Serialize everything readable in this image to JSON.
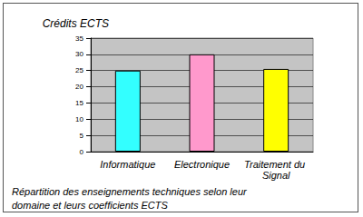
{
  "chart_data": {
    "type": "bar",
    "title": "Répartition des enseignements techniques selon leur domaine et leurs coefficients ECTS",
    "ylabel": "Crédits ECTS",
    "categories": [
      "Informatique",
      "Electronique",
      "Traitement du Signal"
    ],
    "values": [
      25,
      30,
      25.5
    ],
    "colors": [
      "#33ffff",
      "#ff99cc",
      "#ffff00"
    ],
    "ylim": [
      0,
      35
    ],
    "yticks": [
      0,
      5,
      10,
      15,
      20,
      25,
      30,
      35
    ],
    "grid": true
  }
}
